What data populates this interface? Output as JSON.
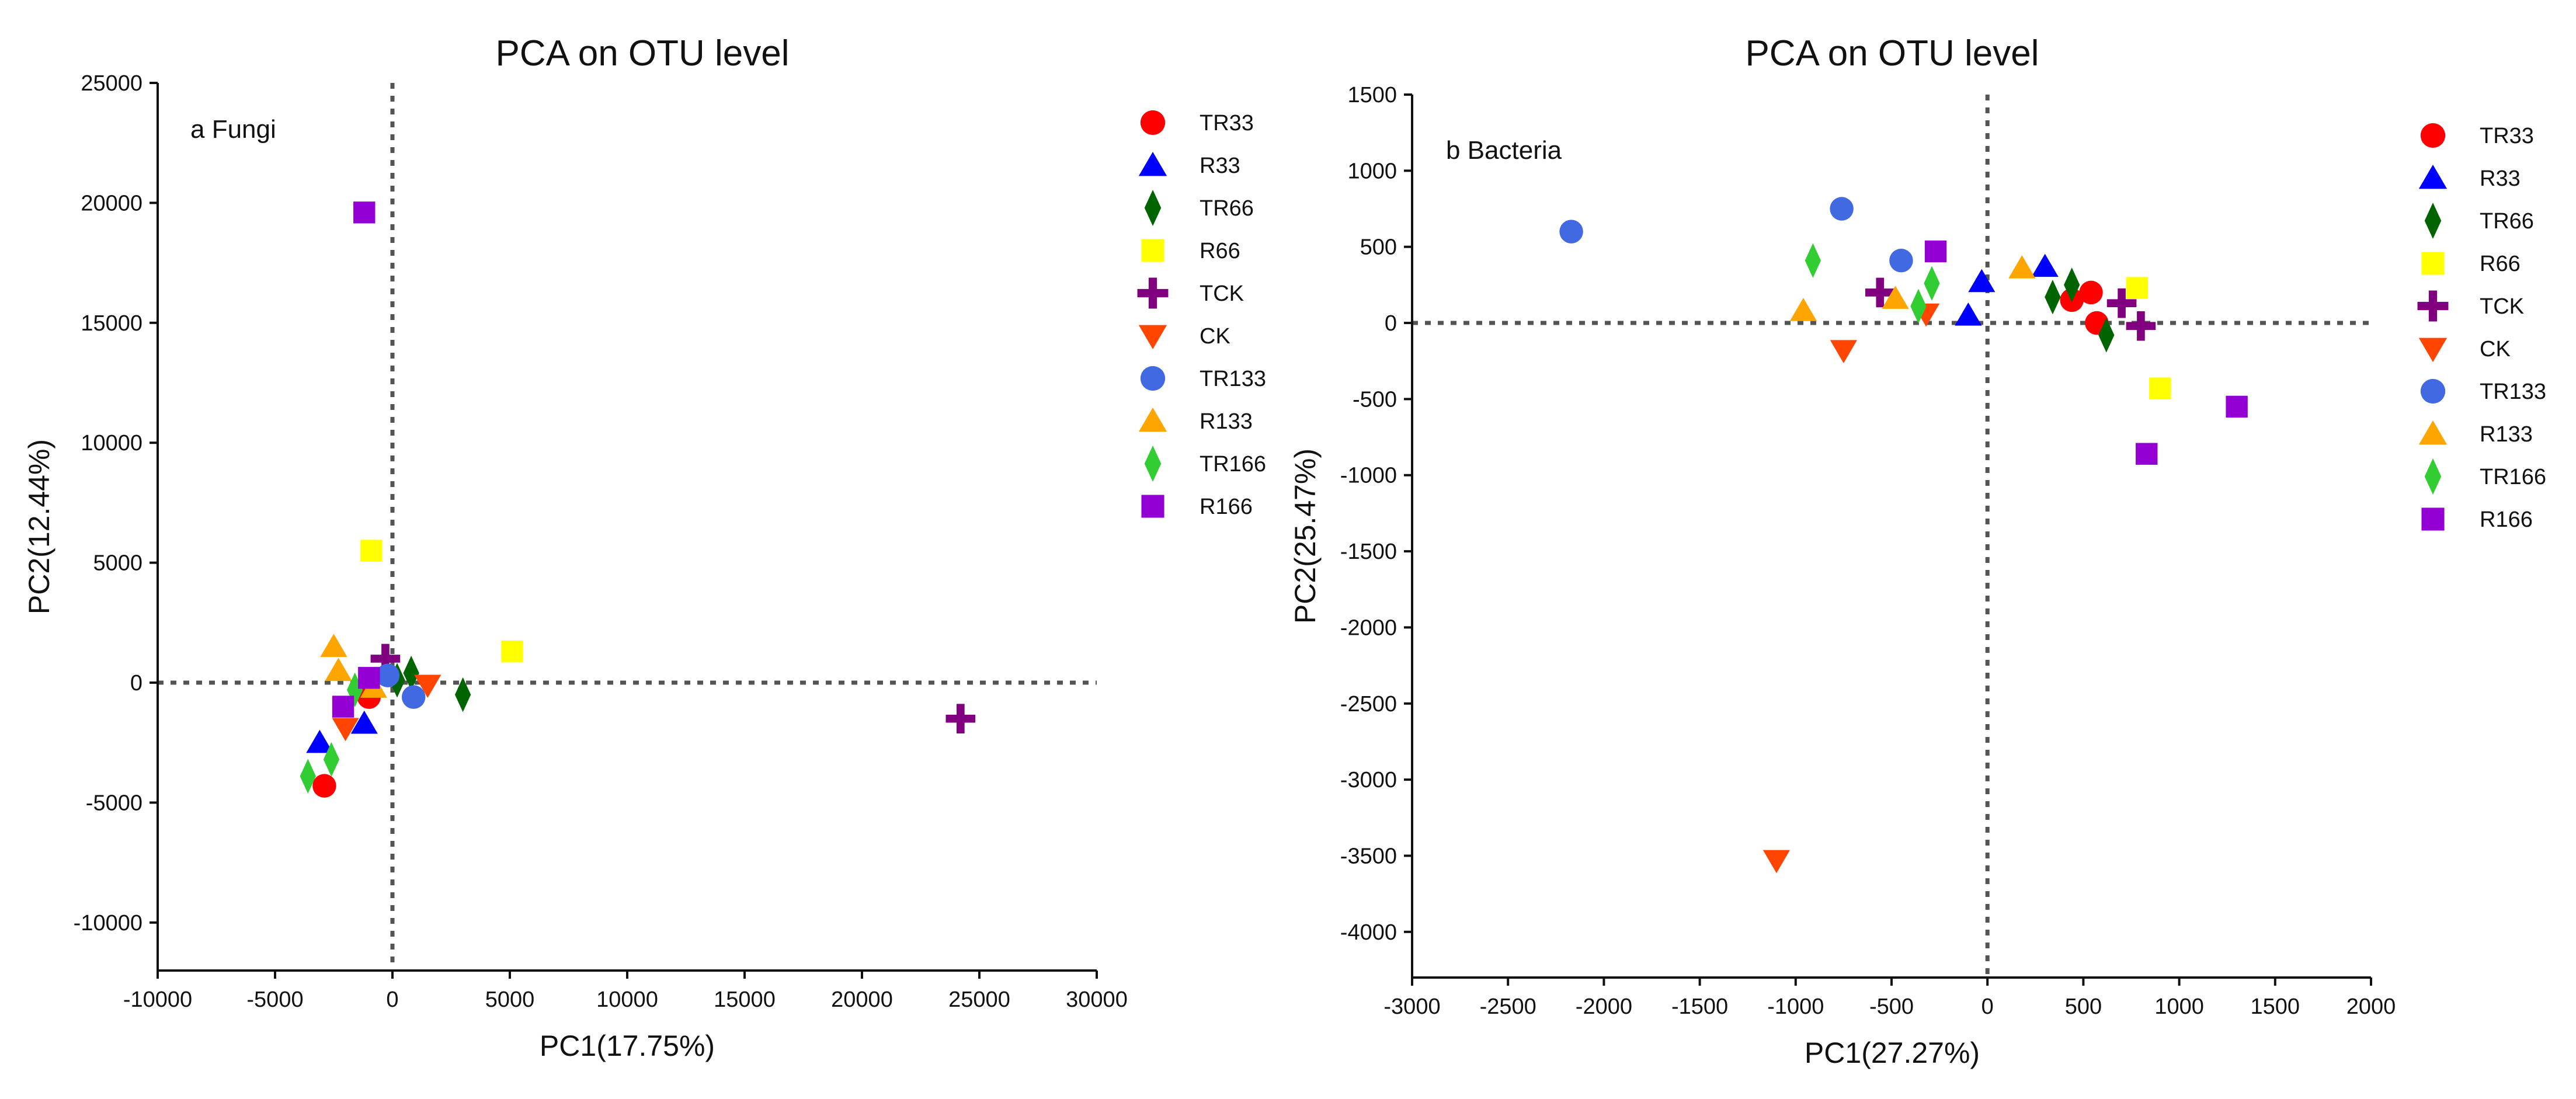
{
  "chart_data": [
    {
      "type": "scatter",
      "title": "PCA on OTU level",
      "panel_label": "a Fungi",
      "xlabel": "PC1(17.75%)",
      "ylabel": "PC2(12.44%)",
      "xlim": [
        -10000,
        30000
      ],
      "ylim": [
        -12000,
        25000
      ],
      "xticks": [
        -10000,
        -5000,
        0,
        5000,
        10000,
        15000,
        20000,
        25000,
        30000
      ],
      "yticks": [
        -10000,
        -5000,
        0,
        5000,
        10000,
        15000,
        20000,
        25000
      ],
      "xtick_labels": [
        "-10000",
        "-5000",
        "0",
        "5000",
        "10000",
        "15000",
        "20000",
        "25000",
        "30000"
      ],
      "ytick_labels": [
        "-10000",
        "-5000",
        "0",
        "5000",
        "10000",
        "15000",
        "20000",
        "25000"
      ],
      "reference_lines": {
        "x": 0,
        "y": 0,
        "style": "dotted"
      },
      "legend_position": "right",
      "series": [
        {
          "name": "TR33",
          "marker": "circle",
          "color": "#ff0000",
          "points": [
            [
              -2900,
              -4300
            ],
            [
              -1000,
              -600
            ]
          ]
        },
        {
          "name": "R33",
          "marker": "triangle-up",
          "color": "#0000ff",
          "points": [
            [
              -3100,
              -2500
            ],
            [
              -1200,
              -1700
            ]
          ]
        },
        {
          "name": "TR66",
          "marker": "diamond",
          "color": "#006400",
          "points": [
            [
              3000,
              -500
            ],
            [
              800,
              400
            ],
            [
              200,
              100
            ]
          ]
        },
        {
          "name": "R66",
          "marker": "square",
          "color": "#ffff00",
          "points": [
            [
              -900,
              5500
            ],
            [
              5100,
              1300
            ]
          ]
        },
        {
          "name": "TCK",
          "marker": "plus",
          "color": "#800080",
          "points": [
            [
              24200,
              -1500
            ],
            [
              -300,
              1000
            ]
          ]
        },
        {
          "name": "CK",
          "marker": "triangle-down",
          "color": "#ff4500",
          "points": [
            [
              -2000,
              -1900
            ],
            [
              1500,
              -100
            ]
          ]
        },
        {
          "name": "TR133",
          "marker": "circle",
          "color": "#4169e1",
          "points": [
            [
              900,
              -600
            ],
            [
              -200,
              300
            ]
          ]
        },
        {
          "name": "R133",
          "marker": "triangle-up",
          "color": "#ffa500",
          "points": [
            [
              -2500,
              1500
            ],
            [
              -2300,
              500
            ],
            [
              -800,
              -200
            ]
          ]
        },
        {
          "name": "TR166",
          "marker": "diamond",
          "color": "#32cd32",
          "points": [
            [
              -3600,
              -3900
            ],
            [
              -2600,
              -3200
            ],
            [
              -1600,
              -300
            ]
          ]
        },
        {
          "name": "R166",
          "marker": "square",
          "color": "#9400d3",
          "points": [
            [
              -1200,
              19600
            ],
            [
              -2100,
              -1000
            ],
            [
              -1000,
              200
            ]
          ]
        }
      ]
    },
    {
      "type": "scatter",
      "title": "PCA on OTU level",
      "panel_label": "b Bacteria",
      "xlabel": "PC1(27.27%)",
      "ylabel": "PC2(25.47%)",
      "xlim": [
        -3000,
        2000
      ],
      "ylim": [
        -4300,
        1500
      ],
      "xticks": [
        -3000,
        -2500,
        -2000,
        -1500,
        -1000,
        -500,
        0,
        500,
        1000,
        1500,
        2000
      ],
      "yticks": [
        -4000,
        -3500,
        -3000,
        -2500,
        -2000,
        -1500,
        -1000,
        -500,
        0,
        500,
        1000,
        1500
      ],
      "xtick_labels": [
        "-3000",
        "-2500",
        "-2000",
        "-1500",
        "-1000",
        "-500",
        "0",
        "500",
        "1000",
        "1500",
        "2000"
      ],
      "ytick_labels": [
        "-4000",
        "-3500",
        "-3000",
        "-2500",
        "-2000",
        "-1500",
        "-1000",
        "-500",
        "0",
        "500",
        "1000",
        "1500"
      ],
      "reference_lines": {
        "x": 0,
        "y": 0,
        "style": "dotted"
      },
      "legend_position": "right",
      "series": [
        {
          "name": "TR33",
          "marker": "circle",
          "color": "#ff0000",
          "points": [
            [
              540,
              200
            ],
            [
              440,
              150
            ],
            [
              570,
              0
            ]
          ]
        },
        {
          "name": "R33",
          "marker": "triangle-up",
          "color": "#0000ff",
          "points": [
            [
              -100,
              50
            ],
            [
              -30,
              270
            ],
            [
              300,
              370
            ]
          ]
        },
        {
          "name": "TR66",
          "marker": "diamond",
          "color": "#006400",
          "points": [
            [
              340,
              170
            ],
            [
              440,
              250
            ],
            [
              620,
              -80
            ]
          ]
        },
        {
          "name": "R66",
          "marker": "square",
          "color": "#ffff00",
          "points": [
            [
              780,
              230
            ],
            [
              900,
              -430
            ]
          ]
        },
        {
          "name": "TCK",
          "marker": "plus",
          "color": "#800080",
          "points": [
            [
              700,
              130
            ],
            [
              800,
              -20
            ],
            [
              -560,
              200
            ]
          ]
        },
        {
          "name": "CK",
          "marker": "triangle-down",
          "color": "#ff4500",
          "points": [
            [
              -1100,
              -3530
            ],
            [
              -750,
              -180
            ],
            [
              -320,
              60
            ]
          ]
        },
        {
          "name": "TR133",
          "marker": "circle",
          "color": "#4169e1",
          "points": [
            [
              -2170,
              600
            ],
            [
              -760,
              750
            ],
            [
              -450,
              410
            ]
          ]
        },
        {
          "name": "R133",
          "marker": "triangle-up",
          "color": "#ffa500",
          "points": [
            [
              -960,
              80
            ],
            [
              -480,
              160
            ],
            [
              180,
              360
            ]
          ]
        },
        {
          "name": "TR166",
          "marker": "diamond",
          "color": "#32cd32",
          "points": [
            [
              -910,
              410
            ],
            [
              -360,
              110
            ],
            [
              -290,
              260
            ]
          ]
        },
        {
          "name": "R166",
          "marker": "square",
          "color": "#9400d3",
          "points": [
            [
              -270,
              470
            ],
            [
              830,
              -860
            ],
            [
              1300,
              -550
            ]
          ]
        }
      ]
    }
  ]
}
